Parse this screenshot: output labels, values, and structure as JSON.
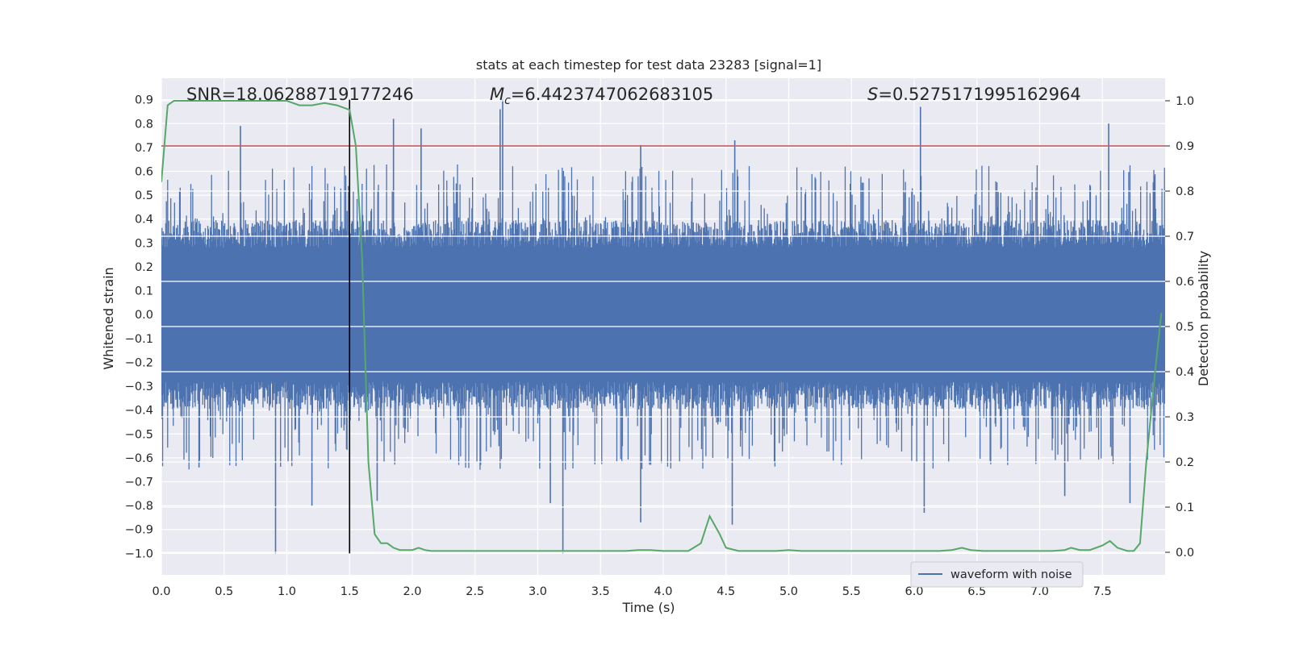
{
  "chart_data": {
    "type": "line",
    "title": "stats at each timestep for test data 23283 [signal=1]",
    "xlabel": "Time (s)",
    "ylabel": "Whitened strain",
    "y2label": "Detection probability",
    "xlim": [
      0.0,
      8.0
    ],
    "ylim": [
      -1.09,
      0.99
    ],
    "y2lim": [
      -0.05,
      1.05
    ],
    "xticks": [
      0.0,
      0.5,
      1.0,
      1.5,
      2.0,
      2.5,
      3.0,
      3.5,
      4.0,
      4.5,
      5.0,
      5.5,
      6.0,
      6.5,
      7.0,
      7.5
    ],
    "xtick_labels": [
      "0.0",
      "0.5",
      "1.0",
      "1.5",
      "2.0",
      "2.5",
      "3.0",
      "3.5",
      "4.0",
      "4.5",
      "5.0",
      "5.5",
      "6.0",
      "6.5",
      "7.0",
      "7.5"
    ],
    "yticks": [
      0.9,
      0.8,
      0.7,
      0.6,
      0.5,
      0.4,
      0.3,
      0.2,
      0.1,
      0.0,
      -0.1,
      -0.2,
      -0.3,
      -0.4,
      -0.5,
      -0.6,
      -0.7,
      -0.8,
      -0.9,
      -1.0
    ],
    "ytick_labels": [
      "0.9",
      "0.8",
      "0.7",
      "0.6",
      "0.5",
      "0.4",
      "0.3",
      "0.2",
      "0.1",
      "0.0",
      "−0.1",
      "−0.2",
      "−0.3",
      "−0.4",
      "−0.5",
      "−0.6",
      "−0.7",
      "−0.8",
      "−0.9",
      "−1.0"
    ],
    "y2ticks": [
      1.0,
      0.9,
      0.8,
      0.7,
      0.6,
      0.5,
      0.4,
      0.3,
      0.2,
      0.1,
      0.0
    ],
    "y2tick_labels": [
      "1.0",
      "0.9",
      "0.8",
      "0.7",
      "0.6",
      "0.5",
      "0.4",
      "0.3",
      "0.2",
      "0.1",
      "0.0"
    ],
    "annotations": {
      "snr": "SNR=18.06288719177246",
      "mc_symbol": "M",
      "mc_sub": "c",
      "mc_value": "=6.4423747062683105",
      "s_symbol": "S",
      "s_value": "=0.5275171995162964"
    },
    "legend": {
      "label": "waveform with noise",
      "loc": "lower right"
    },
    "colors": {
      "waveform": "#4c72b0",
      "probability": "#55a868",
      "threshold": "#c44e52",
      "marker": "#000000",
      "axes_bg": "#eaeaf2",
      "grid": "#ffffff"
    },
    "waveform": {
      "name": "waveform with noise",
      "duration": 8.0,
      "typical_amplitude": 0.33,
      "peaks": [
        {
          "t": 0.63,
          "v": 0.79
        },
        {
          "t": 1.85,
          "v": 0.82
        },
        {
          "t": 2.07,
          "v": 0.78
        },
        {
          "t": 2.72,
          "v": 0.9
        },
        {
          "t": 2.7,
          "v": 0.86
        },
        {
          "t": 3.82,
          "v": 0.71
        },
        {
          "t": 4.57,
          "v": 0.73
        },
        {
          "t": 6.05,
          "v": 0.87
        },
        {
          "t": 7.55,
          "v": 0.8
        },
        {
          "t": 0.91,
          "v": -1.0
        },
        {
          "t": 3.2,
          "v": -1.0
        },
        {
          "t": 3.82,
          "v": -0.87
        },
        {
          "t": 4.55,
          "v": -0.88
        },
        {
          "t": 6.08,
          "v": -0.83
        },
        {
          "t": 7.72,
          "v": -0.79
        },
        {
          "t": 1.2,
          "v": -0.8
        },
        {
          "t": 1.72,
          "v": -0.78
        },
        {
          "t": 3.1,
          "v": -0.79
        },
        {
          "t": 0.3,
          "v": -0.64
        },
        {
          "t": 7.2,
          "v": -0.76
        }
      ]
    },
    "series": [
      {
        "name": "Detection probability",
        "axis": "right",
        "x": [
          0.0,
          0.05,
          0.1,
          0.2,
          0.3,
          0.4,
          0.5,
          0.6,
          0.7,
          0.8,
          0.9,
          1.0,
          1.05,
          1.1,
          1.2,
          1.3,
          1.4,
          1.45,
          1.5,
          1.55,
          1.6,
          1.65,
          1.7,
          1.75,
          1.8,
          1.85,
          1.9,
          1.95,
          2.0,
          2.05,
          2.1,
          2.15,
          2.2,
          2.3,
          2.4,
          2.5,
          2.6,
          2.7,
          2.8,
          2.9,
          3.0,
          3.1,
          3.2,
          3.3,
          3.4,
          3.5,
          3.6,
          3.7,
          3.8,
          3.9,
          4.0,
          4.1,
          4.2,
          4.3,
          4.37,
          4.45,
          4.5,
          4.6,
          4.7,
          4.8,
          4.9,
          5.0,
          5.1,
          5.2,
          5.3,
          5.4,
          5.5,
          5.6,
          5.7,
          5.8,
          5.9,
          6.0,
          6.1,
          6.2,
          6.3,
          6.38,
          6.45,
          6.55,
          6.7,
          6.9,
          7.1,
          7.2,
          7.25,
          7.32,
          7.4,
          7.5,
          7.56,
          7.62,
          7.7,
          7.75,
          7.8,
          7.85,
          7.92,
          7.97
        ],
        "values": [
          0.82,
          0.99,
          1.0,
          1.0,
          1.0,
          1.0,
          1.0,
          1.0,
          1.0,
          1.0,
          1.0,
          1.0,
          0.995,
          0.99,
          0.99,
          0.995,
          0.99,
          0.985,
          0.98,
          0.9,
          0.65,
          0.2,
          0.04,
          0.02,
          0.02,
          0.01,
          0.005,
          0.005,
          0.005,
          0.01,
          0.005,
          0.003,
          0.003,
          0.003,
          0.003,
          0.003,
          0.003,
          0.003,
          0.003,
          0.003,
          0.003,
          0.003,
          0.003,
          0.003,
          0.003,
          0.003,
          0.003,
          0.003,
          0.005,
          0.005,
          0.003,
          0.003,
          0.003,
          0.02,
          0.08,
          0.04,
          0.01,
          0.003,
          0.003,
          0.003,
          0.003,
          0.005,
          0.003,
          0.003,
          0.003,
          0.003,
          0.003,
          0.003,
          0.003,
          0.003,
          0.003,
          0.003,
          0.003,
          0.003,
          0.005,
          0.01,
          0.005,
          0.003,
          0.003,
          0.003,
          0.003,
          0.005,
          0.01,
          0.005,
          0.005,
          0.015,
          0.025,
          0.01,
          0.003,
          0.003,
          0.02,
          0.2,
          0.4,
          0.53
        ]
      }
    ],
    "threshold": {
      "axis": "right",
      "value": 0.9
    },
    "marker_time": 1.5,
    "marker_span": [
      -1.0,
      0.9
    ]
  }
}
